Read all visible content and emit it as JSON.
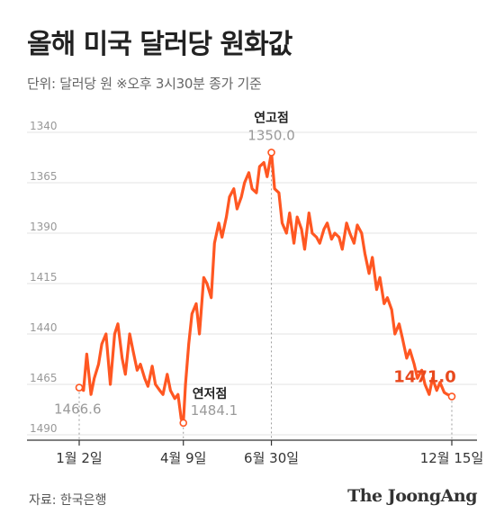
{
  "header": {
    "title": "올해 미국 달러당 원화값",
    "subtitle": "단위: 달러당 원  ※오후 3시30분 종가 기준"
  },
  "footer": {
    "source": "자료: 한국은행",
    "brand": "The JoongAng"
  },
  "colors": {
    "line": "#FF5722",
    "latest_value": "#E8491D",
    "marker_value": "#9A9A9A",
    "grid": "#E3E3E3",
    "axis_text": "#999999"
  },
  "chart_data": {
    "type": "line",
    "xlabel": "",
    "ylabel": "",
    "y_inverted": true,
    "ylim": [
      1340,
      1490
    ],
    "yticks": [
      1340,
      1365,
      1390,
      1415,
      1440,
      1465,
      1490
    ],
    "xticks": [
      {
        "x": "2025-01-02",
        "label": "1월 2일"
      },
      {
        "x": "2025-04-09",
        "label": "4월 9일"
      },
      {
        "x": "2025-06-30",
        "label": "6월 30일"
      },
      {
        "x": "2025-12-15",
        "label": "12월 15일"
      }
    ],
    "series": [
      {
        "x": [
          "2025-01-02",
          "2025-01-06",
          "2025-01-09",
          "2025-01-13",
          "2025-01-16",
          "2025-01-20",
          "2025-01-23",
          "2025-01-27",
          "2025-01-31",
          "2025-02-04",
          "2025-02-07",
          "2025-02-11",
          "2025-02-14",
          "2025-02-18",
          "2025-02-21",
          "2025-02-25",
          "2025-02-28",
          "2025-03-04",
          "2025-03-07",
          "2025-03-11",
          "2025-03-14",
          "2025-03-18",
          "2025-03-21",
          "2025-03-25",
          "2025-03-28",
          "2025-04-01",
          "2025-04-04",
          "2025-04-07",
          "2025-04-09",
          "2025-04-11",
          "2025-04-14",
          "2025-04-17",
          "2025-04-21",
          "2025-04-24",
          "2025-04-28",
          "2025-05-01",
          "2025-05-05",
          "2025-05-08",
          "2025-05-12",
          "2025-05-15",
          "2025-05-19",
          "2025-05-22",
          "2025-05-26",
          "2025-05-29",
          "2025-06-02",
          "2025-06-05",
          "2025-06-09",
          "2025-06-12",
          "2025-06-16",
          "2025-06-19",
          "2025-06-23",
          "2025-06-26",
          "2025-06-30",
          "2025-07-03",
          "2025-07-07",
          "2025-07-10",
          "2025-07-14",
          "2025-07-17",
          "2025-07-21",
          "2025-07-24",
          "2025-07-28",
          "2025-07-31",
          "2025-08-04",
          "2025-08-07",
          "2025-08-11",
          "2025-08-14",
          "2025-08-18",
          "2025-08-21",
          "2025-08-25",
          "2025-08-28",
          "2025-09-01",
          "2025-09-04",
          "2025-09-08",
          "2025-09-11",
          "2025-09-15",
          "2025-09-18",
          "2025-09-22",
          "2025-09-25",
          "2025-09-29",
          "2025-10-02",
          "2025-10-06",
          "2025-10-09",
          "2025-10-13",
          "2025-10-16",
          "2025-10-20",
          "2025-10-23",
          "2025-10-27",
          "2025-10-30",
          "2025-11-03",
          "2025-11-06",
          "2025-11-10",
          "2025-11-13",
          "2025-11-17",
          "2025-11-20",
          "2025-11-24",
          "2025-11-27",
          "2025-12-01",
          "2025-12-04",
          "2025-12-08",
          "2025-12-11",
          "2025-12-15"
        ],
        "values": [
          1466.6,
          1468,
          1450,
          1470,
          1462,
          1455,
          1445,
          1440,
          1465,
          1440,
          1435,
          1452,
          1460,
          1440,
          1448,
          1458,
          1455,
          1462,
          1466,
          1456,
          1465,
          1468,
          1470,
          1460,
          1468,
          1472,
          1470,
          1482,
          1484.1,
          1465,
          1445,
          1430,
          1425,
          1440,
          1412,
          1415,
          1422,
          1395,
          1385,
          1392,
          1382,
          1372,
          1368,
          1378,
          1372,
          1365,
          1360,
          1368,
          1370,
          1357,
          1355,
          1362,
          1350.0,
          1368,
          1370,
          1385,
          1390,
          1380,
          1395,
          1382,
          1388,
          1398,
          1380,
          1390,
          1392,
          1395,
          1388,
          1385,
          1393,
          1390,
          1392,
          1398,
          1385,
          1390,
          1395,
          1386,
          1390,
          1400,
          1410,
          1402,
          1418,
          1412,
          1425,
          1422,
          1428,
          1440,
          1435,
          1442,
          1452,
          1448,
          1455,
          1462,
          1458,
          1465,
          1470,
          1462,
          1468,
          1464,
          1469,
          1470,
          1471.0
        ]
      }
    ],
    "annotations": [
      {
        "x": "2025-01-02",
        "y": 1466.6,
        "text": "1466.6"
      },
      {
        "x": "2025-04-09",
        "y": 1484.1,
        "label": "연저점",
        "text": "1484.1"
      },
      {
        "x": "2025-06-30",
        "y": 1350.0,
        "label": "연고점",
        "text": "1350.0"
      },
      {
        "x": "2025-12-15",
        "y": 1471.0,
        "text": "1471.0"
      }
    ]
  }
}
